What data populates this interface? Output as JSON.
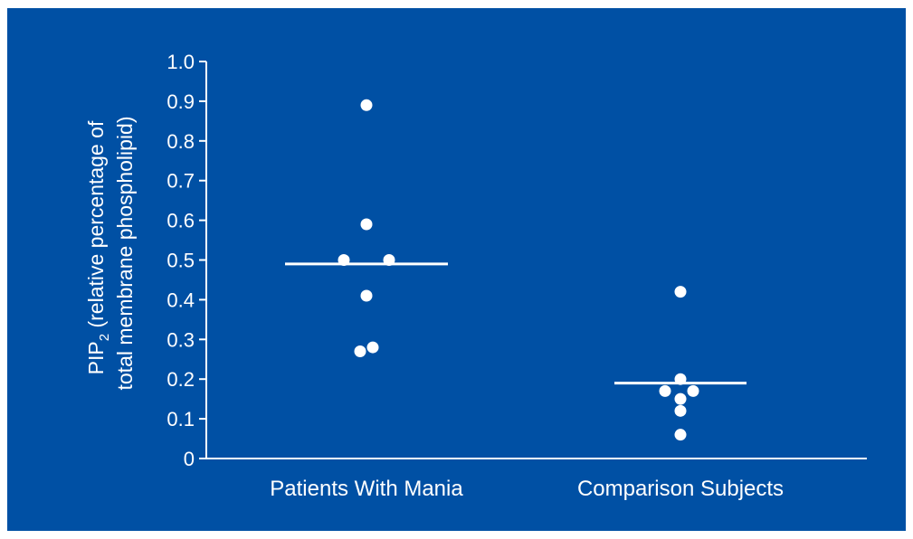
{
  "chart_data": {
    "type": "scatter",
    "title": "",
    "xlabel": "",
    "ylabel": {
      "prefix": "PIP",
      "subscript": "2",
      "line1_rest": " (relative percentage of",
      "line2": "total membrane phospholipid)"
    },
    "ylim": [
      0,
      1.0
    ],
    "yticks": [
      "0",
      "0.1",
      "0.2",
      "0.3",
      "0.4",
      "0.5",
      "0.6",
      "0.7",
      "0.8",
      "0.9",
      "1.0"
    ],
    "categories": [
      "Patients With Mania",
      "Comparison Subjects"
    ],
    "grid": false,
    "background_color": "#0050a4",
    "mark_color": "#ffffff",
    "groups": [
      {
        "category": "Patients With Mania",
        "points": [
          0.89,
          0.59,
          0.5,
          0.5,
          0.41,
          0.28,
          0.27
        ],
        "mean": 0.49
      },
      {
        "category": "Comparison Subjects",
        "points": [
          0.42,
          0.2,
          0.17,
          0.17,
          0.15,
          0.12,
          0.06
        ],
        "mean": 0.19
      }
    ]
  }
}
